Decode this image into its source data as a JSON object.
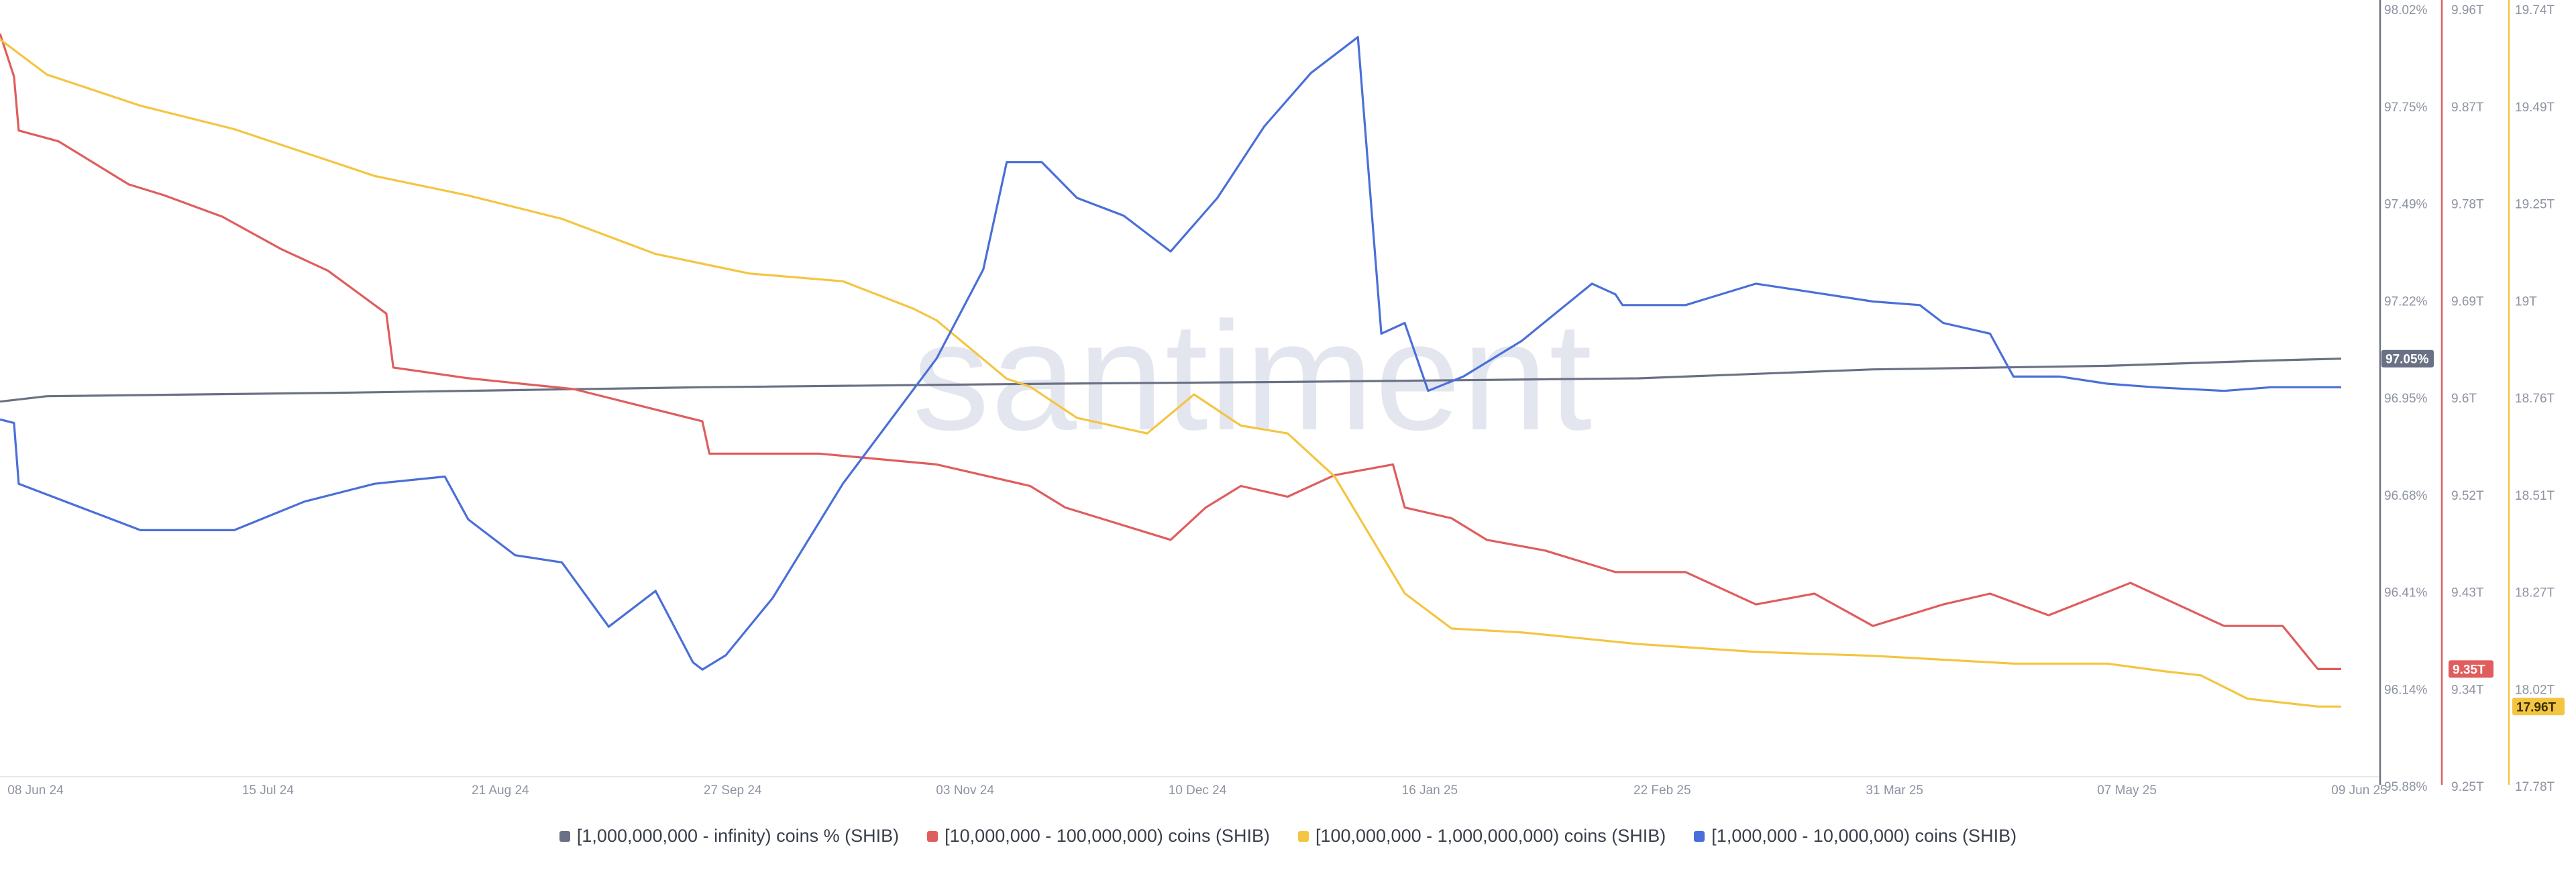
{
  "watermark": "santiment",
  "chart_data": {
    "type": "line",
    "x_ticks": [
      "08 Jun 24",
      "15 Jul 24",
      "21 Aug 24",
      "27 Sep 24",
      "03 Nov 24",
      "10 Dec 24",
      "16 Jan 25",
      "22 Feb 25",
      "31 Mar 25",
      "07 May 25",
      "09 Jun 25"
    ],
    "axes": [
      {
        "id": "pct",
        "color": "#6b7184",
        "ticks": [
          "98.02%",
          "97.75%",
          "97.49%",
          "97.22%",
          "96.95%",
          "96.68%",
          "96.41%",
          "96.14%",
          "95.88%"
        ],
        "badge": "97.05%",
        "badge_color": "#6b7184"
      },
      {
        "id": "red",
        "color": "#e05d5d",
        "ticks": [
          "9.96T",
          "9.87T",
          "9.78T",
          "9.69T",
          "9.6T",
          "9.52T",
          "9.43T",
          "9.34T",
          "9.25T"
        ],
        "badge": "9.35T",
        "badge_color": "#e05d5d"
      },
      {
        "id": "yellow",
        "color": "#f4c542",
        "ticks": [
          "19.74T",
          "19.49T",
          "19.25T",
          "19T",
          "18.76T",
          "18.51T",
          "18.27T",
          "18.02T",
          "17.78T"
        ],
        "badge": "17.96T",
        "badge_color": "#f4c542"
      }
    ],
    "series": [
      {
        "name": "[1,000,000,000 - infinity) coins % (SHIB)",
        "color": "#6b7184",
        "axis": "pct",
        "x": [
          0,
          0.02,
          0.15,
          0.3,
          0.45,
          0.55,
          0.7,
          0.8,
          0.9,
          0.97,
          1.0
        ],
        "y": [
          96.93,
          96.945,
          96.955,
          96.97,
          96.98,
          96.985,
          96.995,
          97.02,
          97.03,
          97.045,
          97.05
        ]
      },
      {
        "name": "[10,000,000 - 100,000,000) coins (SHIB)",
        "color": "#e05d5d",
        "axis": "red",
        "x": [
          0,
          0.006,
          0.008,
          0.025,
          0.04,
          0.055,
          0.07,
          0.095,
          0.12,
          0.14,
          0.165,
          0.168,
          0.2,
          0.245,
          0.3,
          0.303,
          0.35,
          0.4,
          0.44,
          0.455,
          0.5,
          0.515,
          0.53,
          0.55,
          0.57,
          0.595,
          0.6,
          0.62,
          0.635,
          0.66,
          0.69,
          0.72,
          0.75,
          0.775,
          0.8,
          0.83,
          0.85,
          0.875,
          0.91,
          0.95,
          0.975,
          0.99,
          1.0
        ],
        "y": [
          9.94,
          9.9,
          9.85,
          9.84,
          9.82,
          9.8,
          9.79,
          9.77,
          9.74,
          9.72,
          9.68,
          9.63,
          9.62,
          9.61,
          9.58,
          9.55,
          9.55,
          9.54,
          9.52,
          9.5,
          9.47,
          9.5,
          9.52,
          9.51,
          9.53,
          9.54,
          9.5,
          9.49,
          9.47,
          9.46,
          9.44,
          9.44,
          9.41,
          9.42,
          9.39,
          9.41,
          9.42,
          9.4,
          9.43,
          9.39,
          9.39,
          9.35,
          9.35
        ]
      },
      {
        "name": "[100,000,000 - 1,000,000,000) coins (SHIB)",
        "color": "#f4c542",
        "axis": "yellow",
        "x": [
          0,
          0.02,
          0.06,
          0.1,
          0.14,
          0.16,
          0.2,
          0.24,
          0.28,
          0.32,
          0.36,
          0.39,
          0.4,
          0.43,
          0.44,
          0.46,
          0.49,
          0.51,
          0.53,
          0.55,
          0.57,
          0.6,
          0.62,
          0.65,
          0.7,
          0.75,
          0.8,
          0.83,
          0.86,
          0.9,
          0.925,
          0.94,
          0.96,
          0.99,
          1.0
        ],
        "y": [
          19.67,
          19.58,
          19.5,
          19.44,
          19.36,
          19.32,
          19.27,
          19.21,
          19.12,
          19.07,
          19.05,
          18.98,
          18.95,
          18.8,
          18.78,
          18.7,
          18.66,
          18.76,
          18.68,
          18.66,
          18.55,
          18.25,
          18.16,
          18.15,
          18.12,
          18.1,
          18.09,
          18.08,
          18.07,
          18.07,
          18.05,
          18.04,
          17.98,
          17.96,
          17.96
        ]
      },
      {
        "name": "[1,000,000 - 10,000,000) coins (SHIB)",
        "color": "#4a6fd8",
        "axis": "pct",
        "x": [
          0,
          0.006,
          0.008,
          0.04,
          0.06,
          0.1,
          0.13,
          0.16,
          0.19,
          0.2,
          0.22,
          0.24,
          0.26,
          0.28,
          0.296,
          0.3,
          0.31,
          0.33,
          0.36,
          0.4,
          0.42,
          0.43,
          0.445,
          0.46,
          0.48,
          0.5,
          0.52,
          0.54,
          0.56,
          0.58,
          0.59,
          0.6,
          0.61,
          0.625,
          0.65,
          0.68,
          0.69,
          0.693,
          0.7,
          0.72,
          0.75,
          0.78,
          0.8,
          0.82,
          0.83,
          0.85,
          0.86,
          0.88,
          0.9,
          0.9,
          0.92,
          0.95,
          0.97,
          1.0
        ],
        "y": [
          96.88,
          96.87,
          96.7,
          96.62,
          96.57,
          96.57,
          96.65,
          96.7,
          96.72,
          96.6,
          96.5,
          96.48,
          96.3,
          96.4,
          96.2,
          96.18,
          96.22,
          96.38,
          96.7,
          97.05,
          97.3,
          97.6,
          97.6,
          97.5,
          97.45,
          97.35,
          97.5,
          97.7,
          97.85,
          97.95,
          97.12,
          97.15,
          96.96,
          97.0,
          97.1,
          97.26,
          97.23,
          97.2,
          97.2,
          97.2,
          97.26,
          97.23,
          97.21,
          97.2,
          97.15,
          97.12,
          97.0,
          97.0,
          96.98,
          96.98,
          96.97,
          96.96,
          96.97,
          96.97
        ]
      }
    ]
  }
}
